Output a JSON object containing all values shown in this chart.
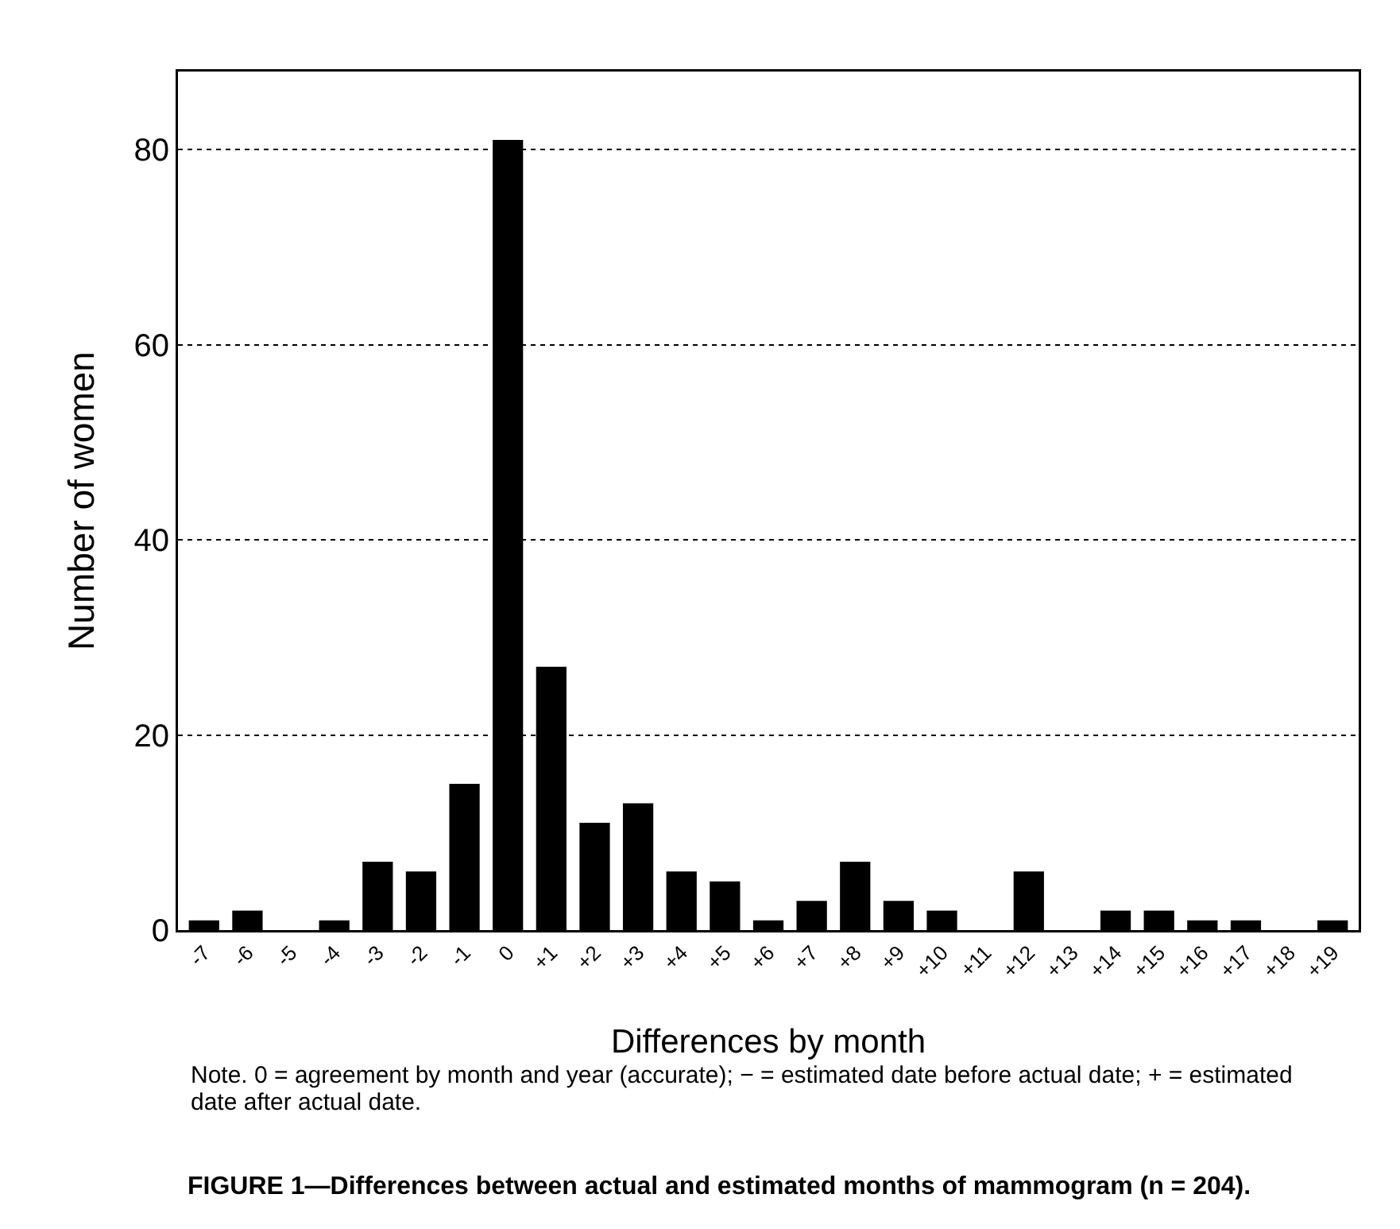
{
  "chart_data": {
    "type": "bar",
    "xlabel": "Differences by month",
    "ylabel": "Number of women",
    "categories": [
      "-7",
      "-6",
      "-5",
      "-4",
      "-3",
      "-2",
      "-1",
      "0",
      "+1",
      "+2",
      "+3",
      "+4",
      "+5",
      "+6",
      "+7",
      "+8",
      "+9",
      "+10",
      "+11",
      "+12",
      "+13",
      "+14",
      "+15",
      "+16",
      "+17",
      "+18",
      "+19"
    ],
    "values": [
      1,
      2,
      0,
      1,
      7,
      6,
      15,
      81,
      27,
      11,
      13,
      6,
      5,
      1,
      3,
      7,
      3,
      2,
      0,
      6,
      0,
      2,
      2,
      1,
      1,
      0,
      1
    ],
    "color": "#000000",
    "ylim": [
      0,
      88
    ],
    "yticks": [
      0,
      20,
      40,
      60,
      80
    ],
    "grid": "y",
    "annotations": [
      "Note. 0 = agreement by month and year (accurate); − = estimated date before actual date; + = estimated date after actual date.",
      "FIGURE 1—Differences between actual and estimated months of mammogram (n = 204)."
    ]
  }
}
